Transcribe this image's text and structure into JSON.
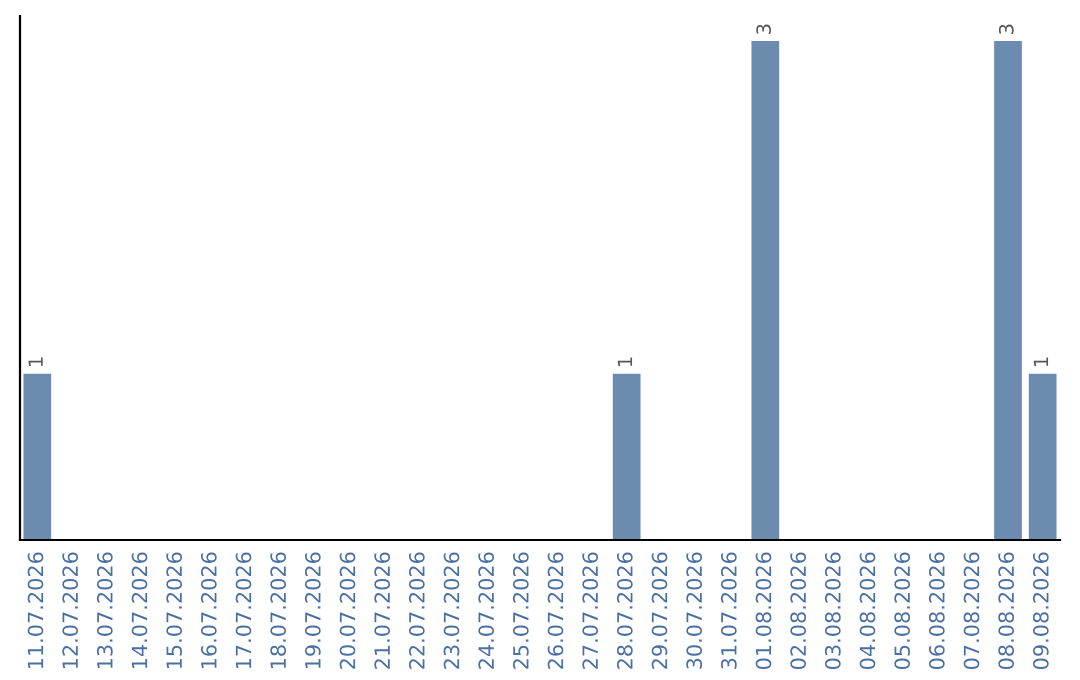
{
  "chart_data": {
    "type": "bar",
    "categories": [
      "11.07.2026",
      "12.07.2026",
      "13.07.2026",
      "14.07.2026",
      "15.07.2026",
      "16.07.2026",
      "17.07.2026",
      "18.07.2026",
      "19.07.2026",
      "20.07.2026",
      "21.07.2026",
      "22.07.2026",
      "23.07.2026",
      "24.07.2026",
      "25.07.2026",
      "26.07.2026",
      "27.07.2026",
      "28.07.2026",
      "29.07.2026",
      "30.07.2026",
      "31.07.2026",
      "01.08.2026",
      "02.08.2026",
      "03.08.2026",
      "04.08.2026",
      "05.08.2026",
      "06.08.2026",
      "07.08.2026",
      "08.08.2026",
      "09.08.2026"
    ],
    "values": [
      1,
      0,
      0,
      0,
      0,
      0,
      0,
      0,
      0,
      0,
      0,
      0,
      0,
      0,
      0,
      0,
      0,
      1,
      0,
      0,
      0,
      3,
      0,
      0,
      0,
      0,
      0,
      0,
      3,
      1
    ],
    "value_labels": [
      "1",
      null,
      null,
      null,
      null,
      null,
      null,
      null,
      null,
      null,
      null,
      null,
      null,
      null,
      null,
      null,
      null,
      "1",
      null,
      null,
      null,
      "3",
      null,
      null,
      null,
      null,
      null,
      null,
      "3",
      "1"
    ],
    "color": "#6b8caf",
    "tick_labels": "x",
    "grid": false
  }
}
